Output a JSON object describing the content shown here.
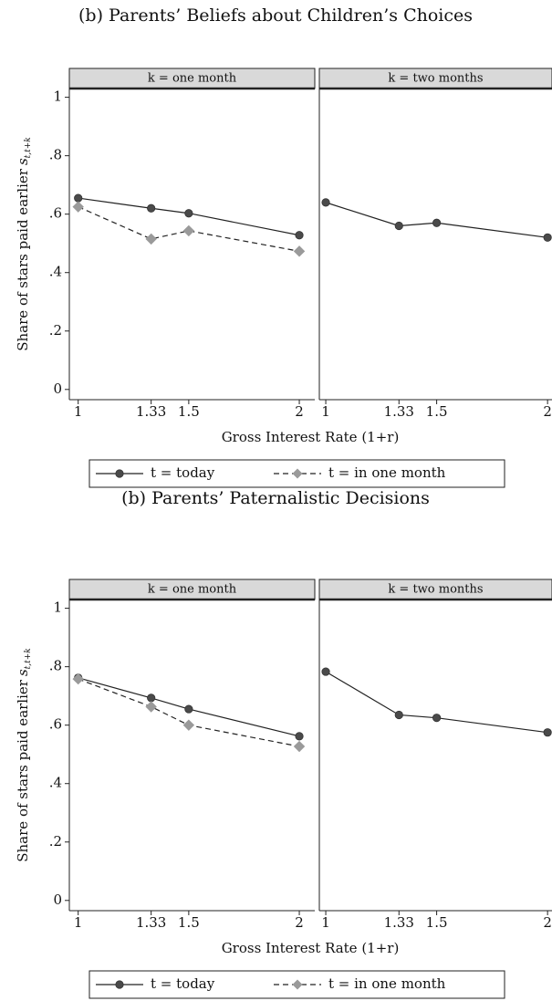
{
  "chart_data": [
    {
      "type": "line",
      "panel_title": "(b) Parents’ Beliefs about Children’s Choices",
      "title": "k = one month",
      "ylabel": "Share of stars paid earlier",
      "ylabel_symbol": "s",
      "ylabel_subscript": "t,t+k",
      "xlabel": "Gross Interest Rate (1+r)",
      "x": [
        1,
        1.33,
        1.5,
        2
      ],
      "xlim": [
        0.96,
        2.07
      ],
      "xticks": [
        1,
        1.33,
        1.5,
        2
      ],
      "ylim": [
        -0.035,
        1.03
      ],
      "yticks": [
        0,
        {
          "value": 0.2,
          "label": ".2"
        },
        {
          "value": 0.4,
          "label": ".4"
        },
        {
          "value": 0.6,
          "label": ".6"
        },
        {
          "value": 0.8,
          "label": ".8"
        },
        1
      ],
      "series": [
        {
          "name": "t = today",
          "color": "#4a4a4a",
          "marker": "circle",
          "dash": false,
          "values": [
            0.655,
            0.62,
            0.603,
            0.528
          ]
        },
        {
          "name": "t = in one month",
          "color": "#9a9a9a",
          "marker": "diamond",
          "dash": true,
          "values": [
            0.625,
            0.515,
            0.543,
            0.473
          ]
        }
      ]
    },
    {
      "type": "line",
      "title": "k = two months",
      "x": [
        1,
        1.33,
        1.5,
        2
      ],
      "xlim": [
        0.971,
        2.02
      ],
      "xticks": [
        1,
        1.33,
        1.5,
        2
      ],
      "ylim": [
        -0.035,
        1.03
      ],
      "series": [
        {
          "color": "#4a4a4a",
          "marker": "circle",
          "dash": false,
          "values": [
            0.64,
            0.56,
            0.57,
            0.52
          ]
        }
      ]
    },
    {
      "type": "line",
      "panel_title": "(b) Parents’ Paternalistic Decisions",
      "title": "k = one month",
      "ylabel": "Share of stars paid earlier",
      "ylabel_symbol": "s",
      "ylabel_subscript": "t,t+k",
      "xlabel": "Gross Interest Rate (1+r)",
      "x": [
        1,
        1.33,
        1.5,
        2
      ],
      "xlim": [
        0.96,
        2.07
      ],
      "xticks": [
        1,
        1.33,
        1.5,
        2
      ],
      "ylim": [
        -0.035,
        1.03
      ],
      "yticks": [
        0,
        {
          "value": 0.2,
          "label": ".2"
        },
        {
          "value": 0.4,
          "label": ".4"
        },
        {
          "value": 0.6,
          "label": ".6"
        },
        {
          "value": 0.8,
          "label": ".8"
        },
        1
      ],
      "series": [
        {
          "name": "t = today",
          "color": "#4a4a4a",
          "marker": "circle",
          "dash": false,
          "values": [
            0.762,
            0.693,
            0.655,
            0.562
          ]
        },
        {
          "name": "t = in one month",
          "color": "#9a9a9a",
          "marker": "diamond",
          "dash": true,
          "values": [
            0.758,
            0.663,
            0.6,
            0.527
          ]
        }
      ]
    },
    {
      "type": "line",
      "title": "k = two months",
      "x": [
        1,
        1.33,
        1.5,
        2
      ],
      "xlim": [
        0.971,
        2.02
      ],
      "xticks": [
        1,
        1.33,
        1.5,
        2
      ],
      "ylim": [
        -0.035,
        1.03
      ],
      "series": [
        {
          "color": "#4a4a4a",
          "marker": "circle",
          "dash": false,
          "values": [
            0.783,
            0.635,
            0.625,
            0.575
          ]
        }
      ]
    }
  ]
}
